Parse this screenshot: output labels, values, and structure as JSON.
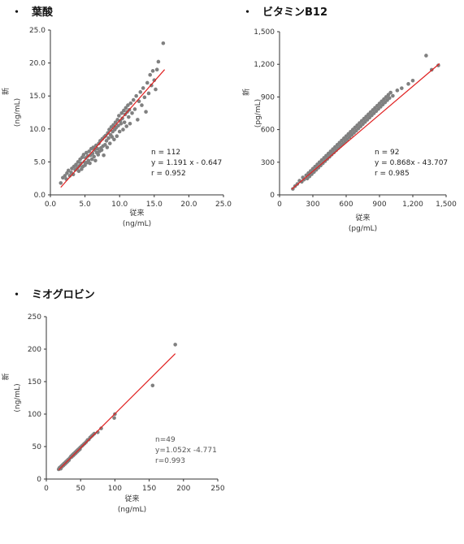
{
  "titles": {
    "folate": "葉酸",
    "b12": "ビタミンB12",
    "myo": "ミオグロビン",
    "bullet": "・"
  },
  "colors": {
    "point": "#808080",
    "line": "#e02020",
    "axis": "#333333"
  },
  "chart_data": [
    {
      "type": "scatter",
      "title": "葉酸",
      "xlabel": "従来",
      "xunit": "(ng/mL)",
      "ylabel": "新",
      "yunit": "(ng/mL)",
      "xlim": [
        0,
        25
      ],
      "ylim": [
        0,
        25
      ],
      "xticks": [
        "0.0",
        "5.0",
        "10.0",
        "15.0",
        "20.0",
        "25.0"
      ],
      "yticks": [
        "0.0",
        "5.0",
        "10.0",
        "15.0",
        "20.0",
        "25.0"
      ],
      "stats": [
        "n = 112",
        "y = 1.191 x - 0.647",
        "r = 0.952"
      ],
      "fit": {
        "slope": 1.191,
        "intercept": -0.647,
        "x_range": [
          1.5,
          16.5
        ]
      },
      "points": [
        [
          1.5,
          1.8
        ],
        [
          1.8,
          2.6
        ],
        [
          2.1,
          2.9
        ],
        [
          2.3,
          2.4
        ],
        [
          2.4,
          3.3
        ],
        [
          2.6,
          3.7
        ],
        [
          2.8,
          2.9
        ],
        [
          3.0,
          3.4
        ],
        [
          3.1,
          4.0
        ],
        [
          3.3,
          3.1
        ],
        [
          3.4,
          4.3
        ],
        [
          3.6,
          3.8
        ],
        [
          3.7,
          4.6
        ],
        [
          3.9,
          4.1
        ],
        [
          4.0,
          5.0
        ],
        [
          4.1,
          3.6
        ],
        [
          4.2,
          4.4
        ],
        [
          4.3,
          5.4
        ],
        [
          4.4,
          4.8
        ],
        [
          4.5,
          3.9
        ],
        [
          4.6,
          5.7
        ],
        [
          4.7,
          4.3
        ],
        [
          4.8,
          6.1
        ],
        [
          4.9,
          5.0
        ],
        [
          5.0,
          4.5
        ],
        [
          5.1,
          5.6
        ],
        [
          5.2,
          6.4
        ],
        [
          5.3,
          4.9
        ],
        [
          5.4,
          5.9
        ],
        [
          5.5,
          5.2
        ],
        [
          5.6,
          6.6
        ],
        [
          5.7,
          4.8
        ],
        [
          5.8,
          6.0
        ],
        [
          5.9,
          7.0
        ],
        [
          6.0,
          5.4
        ],
        [
          6.1,
          6.3
        ],
        [
          6.2,
          7.2
        ],
        [
          6.3,
          5.8
        ],
        [
          6.4,
          6.8
        ],
        [
          6.5,
          5.2
        ],
        [
          6.6,
          7.5
        ],
        [
          6.7,
          6.4
        ],
        [
          6.8,
          7.0
        ],
        [
          6.9,
          6.1
        ],
        [
          7.0,
          7.8
        ],
        [
          7.1,
          6.6
        ],
        [
          7.2,
          8.2
        ],
        [
          7.3,
          7.1
        ],
        [
          7.4,
          6.8
        ],
        [
          7.5,
          8.5
        ],
        [
          7.6,
          7.4
        ],
        [
          7.7,
          6.0
        ],
        [
          7.8,
          8.8
        ],
        [
          7.9,
          7.6
        ],
        [
          8.0,
          9.0
        ],
        [
          8.1,
          8.2
        ],
        [
          8.2,
          7.2
        ],
        [
          8.3,
          9.4
        ],
        [
          8.4,
          8.6
        ],
        [
          8.5,
          9.9
        ],
        [
          8.6,
          7.8
        ],
        [
          8.7,
          9.1
        ],
        [
          8.8,
          10.3
        ],
        [
          8.9,
          8.8
        ],
        [
          9.0,
          9.6
        ],
        [
          9.1,
          10.6
        ],
        [
          9.2,
          8.4
        ],
        [
          9.3,
          9.9
        ],
        [
          9.4,
          11.0
        ],
        [
          9.5,
          10.2
        ],
        [
          9.6,
          8.9
        ],
        [
          9.7,
          11.4
        ],
        [
          9.8,
          10.5
        ],
        [
          9.9,
          12.0
        ],
        [
          10.0,
          9.6
        ],
        [
          10.1,
          11.2
        ],
        [
          10.2,
          10.8
        ],
        [
          10.3,
          12.4
        ],
        [
          10.4,
          11.6
        ],
        [
          10.5,
          9.9
        ],
        [
          10.6,
          12.8
        ],
        [
          10.7,
          11.0
        ],
        [
          10.8,
          12.2
        ],
        [
          10.9,
          13.2
        ],
        [
          11.0,
          10.4
        ],
        [
          11.1,
          12.6
        ],
        [
          11.2,
          13.6
        ],
        [
          11.3,
          11.8
        ],
        [
          11.4,
          12.9
        ],
        [
          11.5,
          10.8
        ],
        [
          11.6,
          13.9
        ],
        [
          11.8,
          12.4
        ],
        [
          12.0,
          14.4
        ],
        [
          12.2,
          13.0
        ],
        [
          12.4,
          15.0
        ],
        [
          12.6,
          11.4
        ],
        [
          12.8,
          14.2
        ],
        [
          13.0,
          15.6
        ],
        [
          13.2,
          13.6
        ],
        [
          13.4,
          16.2
        ],
        [
          13.6,
          14.8
        ],
        [
          13.8,
          12.6
        ],
        [
          14.0,
          17.0
        ],
        [
          14.2,
          15.4
        ],
        [
          14.4,
          18.2
        ],
        [
          14.6,
          16.6
        ],
        [
          14.8,
          18.8
        ],
        [
          15.0,
          17.4
        ],
        [
          15.2,
          16.0
        ],
        [
          15.4,
          19.0
        ],
        [
          15.6,
          20.2
        ],
        [
          16.3,
          23.0
        ]
      ]
    },
    {
      "type": "scatter",
      "title": "ビタミンB12",
      "xlabel": "従来",
      "xunit": "(pg/mL)",
      "ylabel": "新",
      "yunit": "(pg/mL)",
      "xlim": [
        0,
        1500
      ],
      "ylim": [
        0,
        1500
      ],
      "xticks": [
        "0",
        "300",
        "600",
        "900",
        "1,200",
        "1,500"
      ],
      "yticks": [
        "0",
        "300",
        "600",
        "900",
        "1,200",
        "1,500"
      ],
      "stats": [
        "n = 92",
        "y = 0.868x - 43.707",
        "r = 0.985"
      ],
      "fit": {
        "slope": 0.868,
        "intercept": -43.707,
        "x_range": [
          110,
          1440
        ]
      },
      "points": [
        [
          120,
          55
        ],
        [
          140,
          80
        ],
        [
          160,
          100
        ],
        [
          180,
          130
        ],
        [
          200,
          120
        ],
        [
          210,
          160
        ],
        [
          220,
          140
        ],
        [
          240,
          180
        ],
        [
          250,
          150
        ],
        [
          260,
          200
        ],
        [
          270,
          170
        ],
        [
          280,
          220
        ],
        [
          290,
          190
        ],
        [
          300,
          240
        ],
        [
          310,
          210
        ],
        [
          320,
          260
        ],
        [
          330,
          230
        ],
        [
          340,
          280
        ],
        [
          350,
          250
        ],
        [
          360,
          300
        ],
        [
          370,
          270
        ],
        [
          380,
          320
        ],
        [
          390,
          290
        ],
        [
          400,
          340
        ],
        [
          410,
          310
        ],
        [
          420,
          360
        ],
        [
          430,
          330
        ],
        [
          440,
          380
        ],
        [
          450,
          350
        ],
        [
          460,
          400
        ],
        [
          470,
          370
        ],
        [
          480,
          420
        ],
        [
          490,
          390
        ],
        [
          500,
          440
        ],
        [
          510,
          410
        ],
        [
          520,
          460
        ],
        [
          530,
          430
        ],
        [
          540,
          480
        ],
        [
          550,
          450
        ],
        [
          560,
          500
        ],
        [
          570,
          470
        ],
        [
          580,
          520
        ],
        [
          590,
          490
        ],
        [
          600,
          540
        ],
        [
          610,
          510
        ],
        [
          620,
          560
        ],
        [
          630,
          530
        ],
        [
          640,
          580
        ],
        [
          650,
          550
        ],
        [
          660,
          600
        ],
        [
          670,
          570
        ],
        [
          680,
          620
        ],
        [
          690,
          590
        ],
        [
          700,
          640
        ],
        [
          710,
          610
        ],
        [
          720,
          660
        ],
        [
          730,
          630
        ],
        [
          740,
          680
        ],
        [
          750,
          650
        ],
        [
          760,
          700
        ],
        [
          770,
          670
        ],
        [
          780,
          720
        ],
        [
          790,
          690
        ],
        [
          800,
          740
        ],
        [
          810,
          710
        ],
        [
          820,
          760
        ],
        [
          830,
          730
        ],
        [
          840,
          780
        ],
        [
          850,
          750
        ],
        [
          860,
          800
        ],
        [
          870,
          770
        ],
        [
          880,
          820
        ],
        [
          890,
          790
        ],
        [
          900,
          840
        ],
        [
          910,
          810
        ],
        [
          920,
          860
        ],
        [
          930,
          830
        ],
        [
          940,
          880
        ],
        [
          950,
          850
        ],
        [
          960,
          900
        ],
        [
          970,
          870
        ],
        [
          980,
          920
        ],
        [
          990,
          890
        ],
        [
          1000,
          940
        ],
        [
          1020,
          910
        ],
        [
          1060,
          960
        ],
        [
          1100,
          980
        ],
        [
          1160,
          1020
        ],
        [
          1200,
          1050
        ],
        [
          1320,
          1280
        ],
        [
          1370,
          1150
        ],
        [
          1430,
          1190
        ]
      ]
    },
    {
      "type": "scatter",
      "title": "ミオグロビン",
      "xlabel": "従来",
      "xunit": "(ng/mL)",
      "ylabel": "新",
      "yunit": "(ng/mL)",
      "xlim": [
        0,
        250
      ],
      "ylim": [
        0,
        250
      ],
      "xticks": [
        "0",
        "50",
        "100",
        "150",
        "200",
        "250"
      ],
      "yticks": [
        "0",
        "50",
        "100",
        "150",
        "200",
        "250"
      ],
      "stats": [
        "n=49",
        "y=1.052x -4.771",
        "r=0.993"
      ],
      "fit": {
        "slope": 1.052,
        "intercept": -4.771,
        "x_range": [
          18,
          188
        ]
      },
      "points": [
        [
          18,
          15
        ],
        [
          19,
          17
        ],
        [
          20,
          18
        ],
        [
          21,
          16
        ],
        [
          22,
          20
        ],
        [
          23,
          19
        ],
        [
          24,
          22
        ],
        [
          25,
          21
        ],
        [
          26,
          24
        ],
        [
          27,
          23
        ],
        [
          28,
          26
        ],
        [
          29,
          25
        ],
        [
          30,
          28
        ],
        [
          31,
          27
        ],
        [
          32,
          30
        ],
        [
          33,
          29
        ],
        [
          34,
          32
        ],
        [
          35,
          33
        ],
        [
          36,
          35
        ],
        [
          37,
          34
        ],
        [
          38,
          37
        ],
        [
          39,
          36
        ],
        [
          40,
          39
        ],
        [
          41,
          38
        ],
        [
          42,
          41
        ],
        [
          43,
          40
        ],
        [
          44,
          43
        ],
        [
          45,
          42
        ],
        [
          46,
          45
        ],
        [
          47,
          44
        ],
        [
          48,
          47
        ],
        [
          49,
          46
        ],
        [
          50,
          49
        ],
        [
          52,
          51
        ],
        [
          54,
          53
        ],
        [
          56,
          55
        ],
        [
          58,
          57
        ],
        [
          60,
          60
        ],
        [
          62,
          61
        ],
        [
          64,
          64
        ],
        [
          66,
          66
        ],
        [
          68,
          68
        ],
        [
          70,
          70
        ],
        [
          75,
          72
        ],
        [
          80,
          78
        ],
        [
          99,
          94
        ],
        [
          100,
          100
        ],
        [
          155,
          144
        ],
        [
          188,
          207
        ]
      ]
    }
  ]
}
